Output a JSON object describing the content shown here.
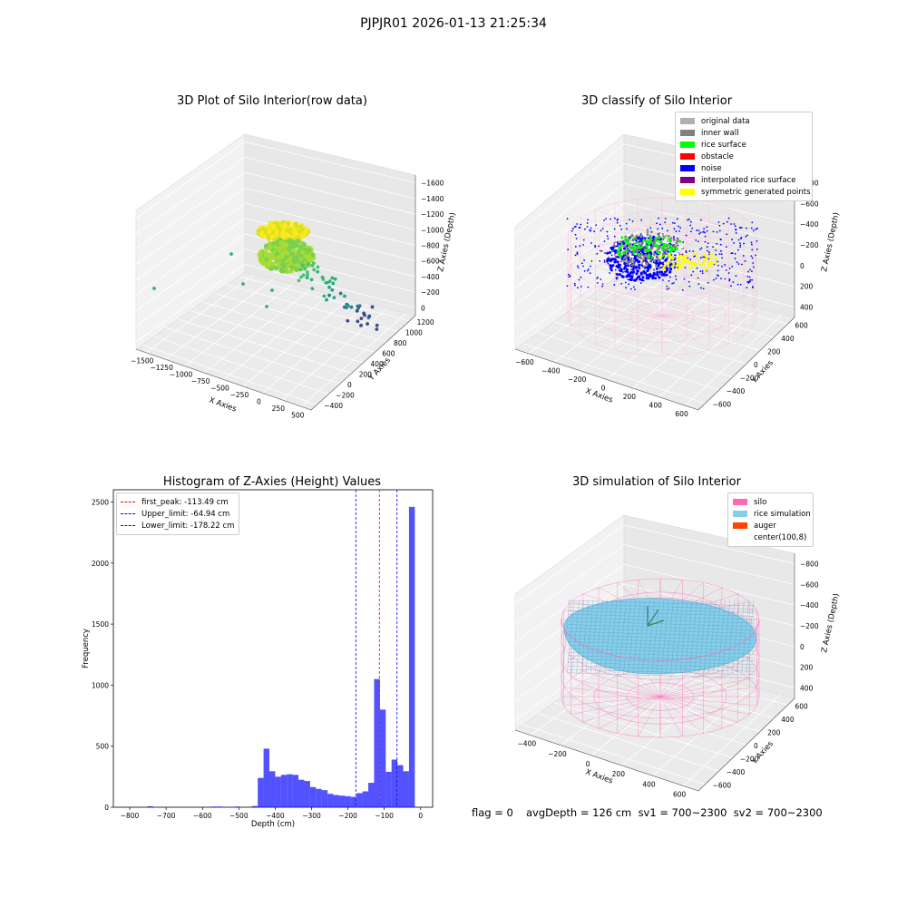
{
  "suptitle": "PJPJR01 2026-01-13 21:25:34",
  "footer": {
    "flag": "flag = 0",
    "summary": "avgDepth = 126 cm  sv1 = 700~2300  sv2 = 700~2300"
  },
  "colors": {
    "histogram_bar": "#0000ff",
    "first_peak_line": "#ff0000",
    "limit_line": "#0000ff",
    "silo_wire": "#ff69b4",
    "rice_surface_sim": "#87ceeb"
  },
  "chart_data": [
    {
      "id": "raw3d",
      "type": "scatter",
      "projection": "3d",
      "title": "3D Plot of Silo Interior(row data)",
      "xlabel": "X Axies",
      "ylabel": "Y Axies",
      "zlabel": "Z Axies (Depth)",
      "x_ticks": [
        "−1500",
        "−1250",
        "−1000",
        "−750",
        "−500",
        "−250",
        "0",
        "250",
        "500"
      ],
      "y_ticks": [
        "−400",
        "−200",
        "0",
        "200",
        "400",
        "600",
        "800",
        "1000",
        "1200"
      ],
      "z_ticks": [
        "0",
        "−200",
        "−400",
        "−600",
        "−800",
        "−1000",
        "−1200",
        "−1400",
        "−1600"
      ],
      "colormap": "viridis"
    },
    {
      "id": "classify3d",
      "type": "scatter",
      "projection": "3d",
      "title": "3D classify of Silo Interior",
      "xlabel": "X Axies",
      "ylabel": "Y Axies",
      "zlabel": "Z Axies (Depth)",
      "x_ticks": [
        "−600",
        "−400",
        "−200",
        "0",
        "200",
        "400",
        "600"
      ],
      "y_ticks": [
        "−600",
        "−400",
        "−200",
        "0",
        "200",
        "400",
        "600"
      ],
      "z_ticks": [
        "400",
        "200",
        "0",
        "−200",
        "−400",
        "−600",
        "−800"
      ],
      "legend": [
        {
          "label": "original data",
          "color": "#b0b0b0"
        },
        {
          "label": "inner wall",
          "color": "#808080"
        },
        {
          "label": "rice surface",
          "color": "#00ff00"
        },
        {
          "label": "obstacle",
          "color": "#ff0000"
        },
        {
          "label": "noise",
          "color": "#0000ff"
        },
        {
          "label": "interpolated rice surface",
          "color": "#800080"
        },
        {
          "label": "symmetric generated points",
          "color": "#ffff00"
        }
      ]
    },
    {
      "id": "histogram",
      "type": "bar",
      "title": "Histogram of Z-Axies (Height) Values",
      "xlabel": "Depth (cm)",
      "ylabel": "Frequency",
      "xlim": [
        -845,
        33
      ],
      "ylim": [
        0,
        2600
      ],
      "x_ticks": [
        -800,
        -700,
        -600,
        -500,
        -400,
        -300,
        -200,
        -100,
        0
      ],
      "y_ticks": [
        0,
        500,
        1000,
        1500,
        2000,
        2500
      ],
      "bin_width": 16,
      "bins": [
        {
          "x": -752,
          "v": 8
        },
        {
          "x": -576,
          "v": 5
        },
        {
          "x": -560,
          "v": 5
        },
        {
          "x": -512,
          "v": 5
        },
        {
          "x": -464,
          "v": 10
        },
        {
          "x": -448,
          "v": 240
        },
        {
          "x": -432,
          "v": 480
        },
        {
          "x": -416,
          "v": 295
        },
        {
          "x": -400,
          "v": 250
        },
        {
          "x": -384,
          "v": 265
        },
        {
          "x": -368,
          "v": 270
        },
        {
          "x": -352,
          "v": 265
        },
        {
          "x": -336,
          "v": 225
        },
        {
          "x": -320,
          "v": 215
        },
        {
          "x": -304,
          "v": 165
        },
        {
          "x": -288,
          "v": 150
        },
        {
          "x": -272,
          "v": 140
        },
        {
          "x": -256,
          "v": 110
        },
        {
          "x": -240,
          "v": 100
        },
        {
          "x": -224,
          "v": 95
        },
        {
          "x": -208,
          "v": 90
        },
        {
          "x": -192,
          "v": 85
        },
        {
          "x": -176,
          "v": 115
        },
        {
          "x": -160,
          "v": 130
        },
        {
          "x": -144,
          "v": 200
        },
        {
          "x": -128,
          "v": 1050
        },
        {
          "x": -112,
          "v": 800
        },
        {
          "x": -96,
          "v": 290
        },
        {
          "x": -80,
          "v": 390
        },
        {
          "x": -64,
          "v": 345
        },
        {
          "x": -48,
          "v": 295
        },
        {
          "x": -32,
          "v": 2460
        }
      ],
      "vlines": [
        {
          "label": "first_peak: -113.49 cm",
          "x": -113.49,
          "color": "#ff0000"
        },
        {
          "label": "Upper_limit: -64.94 cm",
          "x": -64.94,
          "color": "#0000ff"
        },
        {
          "label": "Lower_limit: -178.22 cm",
          "x": -178.22,
          "color": "#0000ff"
        }
      ]
    },
    {
      "id": "sim3d",
      "type": "area",
      "projection": "3d",
      "title": "3D simulation of Silo Interior",
      "xlabel": "X Axies",
      "ylabel": "Y Axies",
      "zlabel": "Z Axies (Depth)",
      "x_ticks": [
        "−400",
        "−200",
        "0",
        "200",
        "400",
        "600"
      ],
      "y_ticks": [
        "−600",
        "−400",
        "−200",
        "0",
        "200",
        "400",
        "600"
      ],
      "z_ticks": [
        "400",
        "200",
        "0",
        "−200",
        "−400",
        "−600",
        "−800"
      ],
      "legend": [
        {
          "label": "silo",
          "color": "#ff69b4"
        },
        {
          "label": "rice simulation",
          "color": "#87ceeb"
        },
        {
          "label": "auger",
          "color": "#ff4500"
        },
        {
          "label": "center(100,8)",
          "color": ""
        }
      ]
    }
  ]
}
